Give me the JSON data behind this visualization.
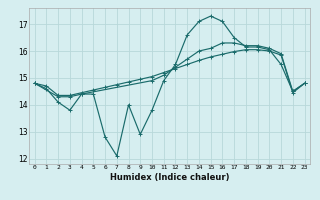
{
  "xlabel": "Humidex (Indice chaleur)",
  "bg_color": "#d6eef0",
  "grid_color": "#b8d8da",
  "line_color": "#1a6b6b",
  "xlim": [
    -0.5,
    23.5
  ],
  "ylim": [
    11.8,
    17.6
  ],
  "yticks": [
    12,
    13,
    14,
    15,
    16,
    17
  ],
  "xticks": [
    0,
    1,
    2,
    3,
    4,
    5,
    6,
    7,
    8,
    9,
    10,
    11,
    12,
    13,
    14,
    15,
    16,
    17,
    18,
    19,
    20,
    21,
    22,
    23
  ],
  "line1_x": [
    0,
    1,
    2,
    3,
    4,
    5,
    6,
    7,
    8,
    9,
    10,
    11,
    12,
    13,
    14,
    15,
    16,
    17,
    18,
    19,
    20,
    21,
    22,
    23
  ],
  "line1_y": [
    14.8,
    14.6,
    14.1,
    13.8,
    14.4,
    14.4,
    12.8,
    12.1,
    14.0,
    12.9,
    13.8,
    14.9,
    15.5,
    16.6,
    17.1,
    17.3,
    17.1,
    16.5,
    16.15,
    16.15,
    16.05,
    15.5,
    14.5,
    14.8
  ],
  "line2_x": [
    0,
    2,
    3,
    4,
    10,
    11,
    12,
    13,
    14,
    15,
    16,
    17,
    18,
    19,
    20,
    21,
    22,
    23
  ],
  "line2_y": [
    14.8,
    14.3,
    14.3,
    14.4,
    14.9,
    15.1,
    15.4,
    15.7,
    16.0,
    16.1,
    16.3,
    16.3,
    16.2,
    16.2,
    16.1,
    15.9,
    14.5,
    14.8
  ],
  "line3_x": [
    0,
    1,
    2,
    3,
    4,
    5,
    6,
    7,
    8,
    9,
    10,
    11,
    12,
    13,
    14,
    15,
    16,
    17,
    18,
    19,
    20,
    21,
    22,
    23
  ],
  "line3_y": [
    14.8,
    14.7,
    14.35,
    14.35,
    14.45,
    14.55,
    14.65,
    14.75,
    14.85,
    14.95,
    15.05,
    15.2,
    15.35,
    15.5,
    15.65,
    15.78,
    15.88,
    15.98,
    16.05,
    16.05,
    16.0,
    15.85,
    14.45,
    14.8
  ]
}
